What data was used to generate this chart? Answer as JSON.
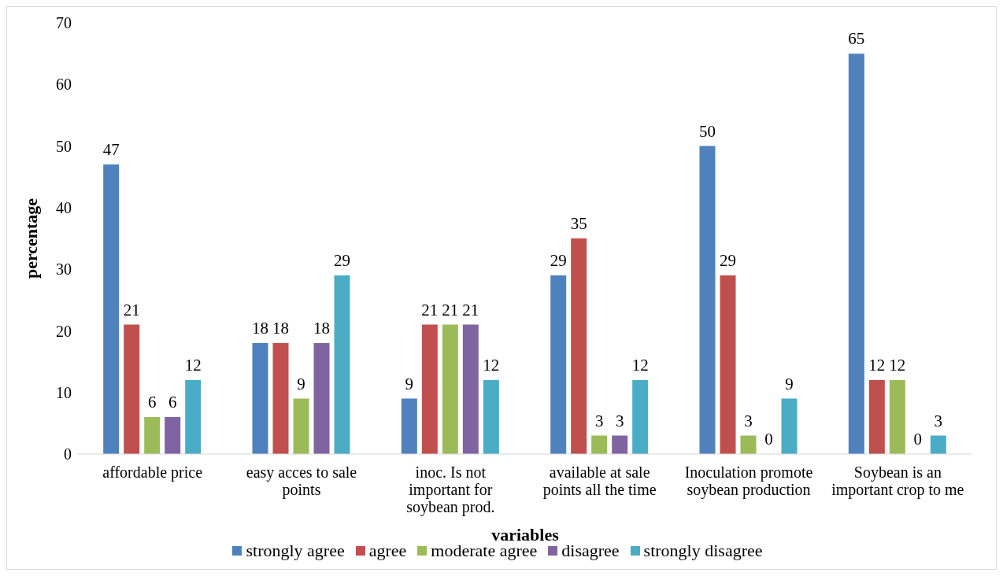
{
  "chart_data": {
    "type": "bar",
    "xlabel": "variables",
    "ylabel": "percentage",
    "categories": [
      "affordable price",
      "easy acces to sale points",
      "inoc. Is not important for soybean prod.",
      "available at sale points all the time",
      "Inoculation promote soybean production",
      "Soybean is an important crop to me"
    ],
    "series": [
      {
        "name": "strongly agree",
        "color": "#4f81bd",
        "values": [
          47,
          18,
          9,
          29,
          50,
          65
        ]
      },
      {
        "name": "agree",
        "color": "#c0504d",
        "values": [
          21,
          18,
          21,
          35,
          29,
          12
        ]
      },
      {
        "name": "moderate agree",
        "color": "#9bbb59",
        "values": [
          6,
          9,
          21,
          3,
          3,
          12
        ]
      },
      {
        "name": "disagree",
        "color": "#8064a2",
        "values": [
          6,
          18,
          21,
          3,
          0,
          0
        ]
      },
      {
        "name": "strongly disagree",
        "color": "#4bacc6",
        "values": [
          12,
          29,
          12,
          12,
          9,
          3
        ]
      }
    ],
    "ylim": [
      0,
      70
    ],
    "yticks": [
      0,
      10,
      20,
      30,
      40,
      50,
      60,
      70
    ],
    "grid": false,
    "legend": "bottom",
    "data_labels": true
  }
}
